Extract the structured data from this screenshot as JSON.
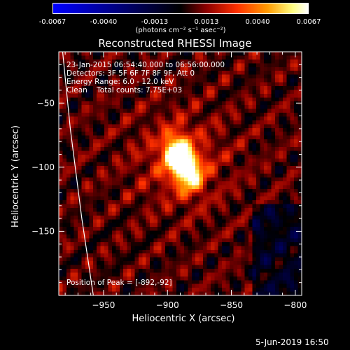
{
  "colorbar": {
    "ticks": [
      "-0.0067",
      "-0.0040",
      "-0.0013",
      "0.0013",
      "0.0040",
      "0.0067"
    ],
    "range": [
      -0.0067,
      0.0067
    ],
    "unit_text": "(photons cm⁻² s⁻¹ asec⁻²)",
    "colors": [
      "#0000ff",
      "#000000",
      "#8b0000",
      "#ff3000",
      "#ff9a00",
      "#ffff80",
      "#ffffff"
    ]
  },
  "chart_data": {
    "type": "heatmap",
    "title": "Reconstructed RHESSI Image",
    "xlabel": "Heliocentric X (arcsec)",
    "ylabel": "Heliocentric Y (arcsec)",
    "xlim": [
      -985,
      -795
    ],
    "ylim": [
      -200,
      -10
    ],
    "xticks": [
      -950,
      -900,
      -850,
      -800
    ],
    "yticks": [
      -50,
      -100,
      -150
    ],
    "xtick_labels": [
      "−950",
      "−900",
      "−850",
      "−800"
    ],
    "ytick_labels": [
      "−50",
      "−100",
      "−150"
    ],
    "annotations": [
      "23-Jan-2015 06:54:40.000 to 06:56:00.000",
      "Detectors: 3F 5F 6F 7F 8F 9F, Att 0",
      "Energy Range: 6.0 - 12.0 keV",
      "Clean    Total counts: 7.75E+03"
    ],
    "peak_label": "Position of Peak = [-892,-92]",
    "peak": [
      -892,
      -92
    ],
    "sources": [
      {
        "x": -893,
        "y": -90,
        "peak": 0.0067
      },
      {
        "x": -882,
        "y": -105,
        "peak": 0.0052
      }
    ],
    "limb_points": [
      [
        -982,
        -10
      ],
      [
        -976,
        -70
      ],
      [
        -967,
        -140
      ],
      [
        -958,
        -200
      ]
    ]
  },
  "footer": "5-Jun-2019 16:50"
}
